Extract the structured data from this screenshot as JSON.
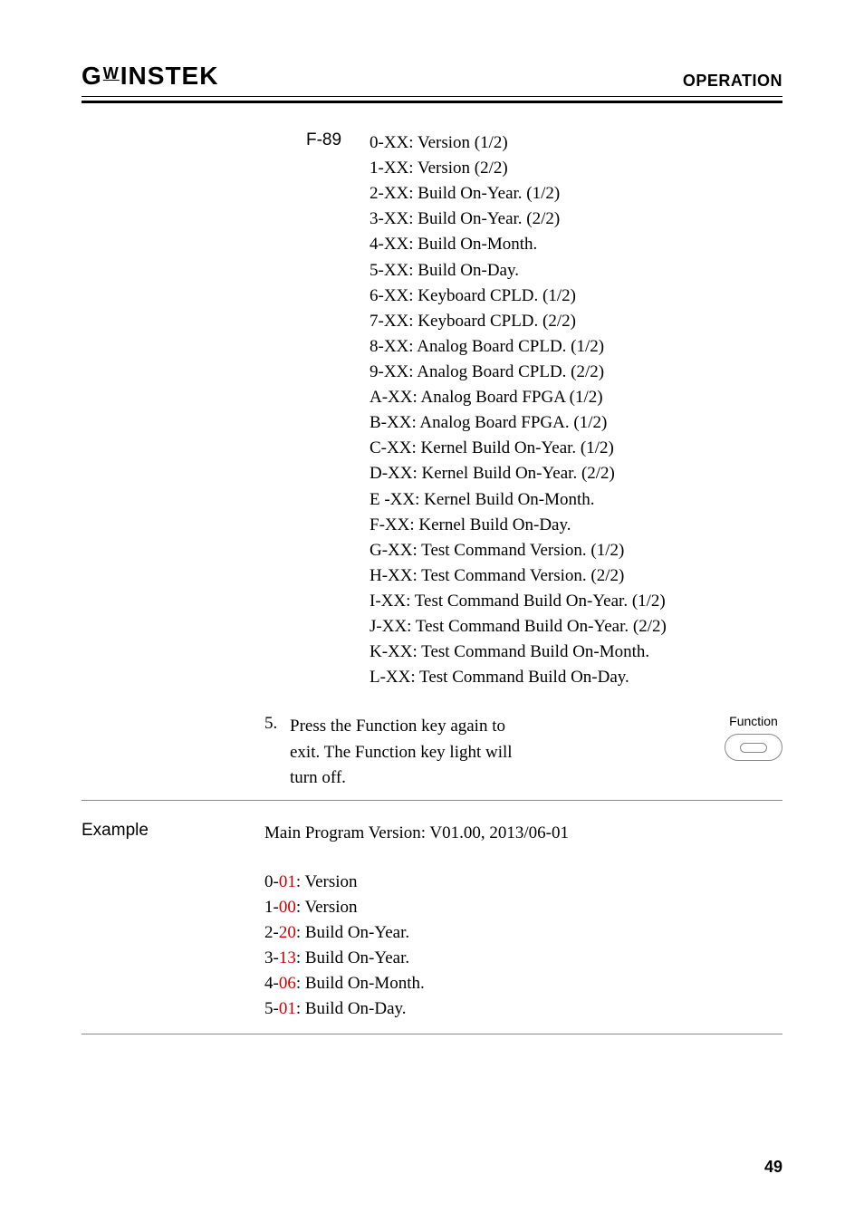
{
  "header": {
    "logo_text": "GWINSTEK",
    "section": "OPERATION"
  },
  "f89": {
    "label": "F-89",
    "items": [
      "0-XX: Version (1/2)",
      "1-XX: Version (2/2)",
      "2-XX: Build On-Year. (1/2)",
      "3-XX: Build On-Year. (2/2)",
      "4-XX: Build On-Month.",
      "5-XX: Build On-Day.",
      "6-XX: Keyboard CPLD. (1/2)",
      "7-XX: Keyboard CPLD. (2/2)",
      "8-XX: Analog Board CPLD. (1/2)",
      "9-XX: Analog Board CPLD. (2/2)",
      "A-XX: Analog Board FPGA (1/2)",
      "B-XX: Analog Board FPGA. (1/2)",
      "C-XX: Kernel Build On-Year. (1/2)",
      "D-XX: Kernel Build On-Year. (2/2)",
      "E -XX: Kernel Build On-Month.",
      "F-XX: Kernel Build On-Day.",
      "G-XX: Test Command Version. (1/2)",
      "H-XX: Test Command Version. (2/2)",
      "I-XX: Test Command Build On-Year. (1/2)",
      "J-XX: Test Command Build On-Year. (2/2)",
      "K-XX: Test Command Build On-Month.",
      "L-XX: Test Command Build On-Day."
    ]
  },
  "step5": {
    "num": "5.",
    "text1": "Press the Function key again to",
    "text2": "exit. The Function key light will",
    "text3": "turn off.",
    "function_label": "Function"
  },
  "example": {
    "label": "Example",
    "title": "Main Program Version: V01.00, 2013/06-01",
    "lines": [
      {
        "prefix": "0-",
        "red": "01",
        "suffix": ": Version"
      },
      {
        "prefix": "1-",
        "red": "00",
        "suffix": ": Version"
      },
      {
        "prefix": "2-",
        "red": "20",
        "suffix": ": Build On-Year."
      },
      {
        "prefix": "3-",
        "red": "13",
        "suffix": ": Build On-Year."
      },
      {
        "prefix": "4-",
        "red": "06",
        "suffix": ": Build On-Month."
      },
      {
        "prefix": "5-",
        "red": "01",
        "suffix": ": Build On-Day."
      }
    ]
  },
  "colors": {
    "red": "#cc0000",
    "text": "#000000"
  },
  "page_number": "49"
}
